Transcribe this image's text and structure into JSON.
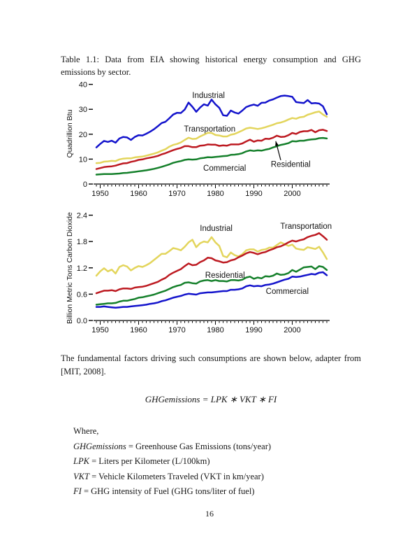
{
  "page": {
    "caption": "Table 1.1: Data from EIA showing historical energy consumption and GHG emissions by sector.",
    "paragraph": "The fundamental factors driving such consumptions are shown below, adapter from [MIT, 2008].",
    "equation": "GHGemissions = LPK ∗ VKT ∗ FI",
    "where_label": "Where,",
    "definitions": [
      {
        "term": "GHGemissions",
        "text": "= Greenhouse Gas Emissions (tons/year)"
      },
      {
        "term": "LPK",
        "text": "= Liters per Kilometer (L/100km)"
      },
      {
        "term": "VKT",
        "text": "= Vehicle Kilometers Traveled (VKT in km/year)"
      },
      {
        "term": "FI",
        "text": "= GHG intensity of Fuel (GHG tons/liter of fuel)"
      }
    ],
    "page_number": "16"
  },
  "chart_data": [
    {
      "type": "line",
      "title": "",
      "xlabel": "",
      "ylabel": "Quadrillion Btu",
      "ylim": [
        0,
        40
      ],
      "yticks": [
        0,
        10,
        20,
        30,
        40
      ],
      "ytick_labels": [
        "0",
        "10",
        "20",
        "30",
        "40"
      ],
      "x_start": 1949,
      "x_end": 2009,
      "xticks_labeled": [
        1950,
        1960,
        1970,
        1980,
        1990,
        2000
      ],
      "grid": false,
      "legend": "inline-labels",
      "series": [
        {
          "name": "Industrial",
          "color": "#1414cc",
          "values": [
            14.7,
            16.1,
            17.3,
            16.9,
            17.4,
            16.6,
            18.3,
            18.9,
            18.7,
            17.7,
            18.9,
            19.6,
            19.5,
            20.2,
            21.0,
            22.0,
            23.2,
            24.5,
            25.0,
            26.4,
            27.9,
            28.6,
            28.5,
            29.9,
            32.7,
            31.0,
            29.0,
            30.7,
            32.0,
            31.5,
            33.9,
            32.0,
            30.6,
            27.6,
            27.4,
            29.5,
            28.7,
            28.3,
            29.5,
            30.9,
            31.5,
            31.9,
            31.4,
            32.6,
            32.7,
            33.5,
            34.0,
            34.7,
            35.3,
            35.5,
            35.3,
            35.0,
            32.9,
            32.7,
            32.5,
            33.7,
            32.4,
            32.5,
            32.3,
            31.2,
            28.0
          ]
        },
        {
          "name": "Transportation",
          "color": "#e3d55c",
          "values": [
            8.4,
            8.5,
            9.0,
            9.1,
            9.3,
            9.2,
            9.9,
            10.2,
            10.3,
            10.3,
            10.7,
            10.9,
            11.0,
            11.4,
            11.8,
            12.2,
            12.7,
            13.4,
            14.0,
            15.0,
            15.7,
            16.1,
            16.7,
            17.7,
            18.6,
            18.1,
            18.2,
            19.1,
            19.8,
            20.6,
            20.5,
            19.7,
            19.5,
            19.1,
            19.1,
            19.8,
            20.1,
            20.8,
            21.5,
            22.3,
            22.6,
            22.4,
            22.1,
            22.4,
            22.8,
            23.3,
            23.8,
            24.4,
            24.7,
            25.2,
            25.9,
            26.5,
            26.2,
            26.8,
            27.0,
            27.8,
            28.3,
            28.8,
            29.1,
            27.9,
            27.0
          ]
        },
        {
          "name": "Residential",
          "color": "#bd1a21",
          "values": [
            6.0,
            6.4,
            6.8,
            7.0,
            7.1,
            7.4,
            7.9,
            8.3,
            8.4,
            8.9,
            9.2,
            9.7,
            9.9,
            10.3,
            10.6,
            10.9,
            11.3,
            11.9,
            12.4,
            13.0,
            13.6,
            14.1,
            14.5,
            15.2,
            15.2,
            14.8,
            14.8,
            15.4,
            15.5,
            15.9,
            15.8,
            15.8,
            15.3,
            15.5,
            15.4,
            15.9,
            15.9,
            15.9,
            16.3,
            17.1,
            17.8,
            17.0,
            17.5,
            17.4,
            18.2,
            18.1,
            18.6,
            19.4,
            18.9,
            19.0,
            19.6,
            20.5,
            20.1,
            20.9,
            21.2,
            21.2,
            21.7,
            20.8,
            21.6,
            21.8,
            21.3
          ]
        },
        {
          "name": "Commercial",
          "color": "#15802b",
          "values": [
            3.8,
            3.9,
            4.0,
            4.0,
            4.0,
            4.1,
            4.2,
            4.4,
            4.5,
            4.7,
            4.9,
            5.1,
            5.3,
            5.5,
            5.8,
            6.1,
            6.5,
            6.9,
            7.4,
            7.9,
            8.5,
            8.9,
            9.2,
            9.7,
            9.9,
            9.8,
            9.9,
            10.3,
            10.5,
            10.8,
            10.7,
            10.9,
            11.0,
            11.2,
            11.3,
            11.7,
            11.8,
            12.0,
            12.4,
            13.1,
            13.5,
            13.3,
            13.5,
            13.4,
            13.8,
            14.1,
            14.7,
            15.2,
            15.7,
            16.0,
            16.4,
            17.2,
            17.1,
            17.4,
            17.4,
            17.7,
            17.9,
            18.0,
            18.4,
            18.5,
            18.3
          ]
        }
      ],
      "labels": [
        {
          "text": "Industrial",
          "x": 1978.2,
          "y": 34.5
        },
        {
          "text": "Transportation",
          "x": 1978.5,
          "y": 21.0
        },
        {
          "text": "Commercial",
          "x": 1982.4,
          "y": 5.4
        },
        {
          "text": "Residential",
          "x": 1999.6,
          "y": 6.9,
          "arrow": {
            "from": {
              "x": 1997.0,
              "y": 9.6
            },
            "to": {
              "x": 1995.7,
              "y": 17.2
            }
          }
        }
      ]
    },
    {
      "type": "line",
      "title": "",
      "xlabel": "",
      "ylabel": "Billion Metric Tons Carbon Dioxide",
      "ylim": [
        0,
        2.4
      ],
      "yticks": [
        0,
        0.6,
        1.2,
        1.8,
        2.4
      ],
      "ytick_labels": [
        "0.0",
        "0.6",
        "1.2",
        "1.8",
        "2.4"
      ],
      "x_start": 1949,
      "x_end": 2009,
      "xticks_labeled": [
        1950,
        1960,
        1970,
        1980,
        1990,
        2000
      ],
      "grid": false,
      "legend": "inline-labels",
      "series": [
        {
          "name": "Industrial",
          "color": "#e3d55c",
          "values": [
            1.02,
            1.12,
            1.19,
            1.12,
            1.16,
            1.07,
            1.22,
            1.26,
            1.23,
            1.14,
            1.2,
            1.24,
            1.22,
            1.26,
            1.31,
            1.38,
            1.45,
            1.52,
            1.52,
            1.58,
            1.65,
            1.63,
            1.6,
            1.68,
            1.78,
            1.84,
            1.67,
            1.76,
            1.8,
            1.78,
            1.9,
            1.78,
            1.7,
            1.47,
            1.44,
            1.55,
            1.49,
            1.46,
            1.51,
            1.6,
            1.62,
            1.62,
            1.57,
            1.61,
            1.62,
            1.66,
            1.66,
            1.72,
            1.78,
            1.74,
            1.7,
            1.73,
            1.64,
            1.62,
            1.61,
            1.67,
            1.65,
            1.63,
            1.68,
            1.55,
            1.4
          ]
        },
        {
          "name": "Commercial",
          "color": "#1414cc",
          "values": [
            0.31,
            0.31,
            0.32,
            0.31,
            0.3,
            0.29,
            0.3,
            0.31,
            0.31,
            0.32,
            0.33,
            0.34,
            0.35,
            0.36,
            0.38,
            0.39,
            0.41,
            0.44,
            0.46,
            0.49,
            0.52,
            0.54,
            0.56,
            0.59,
            0.61,
            0.6,
            0.59,
            0.62,
            0.63,
            0.64,
            0.64,
            0.65,
            0.66,
            0.67,
            0.67,
            0.7,
            0.7,
            0.71,
            0.73,
            0.78,
            0.8,
            0.78,
            0.79,
            0.78,
            0.81,
            0.82,
            0.84,
            0.87,
            0.9,
            0.93,
            0.95,
            1.0,
            0.99,
            1.0,
            1.02,
            1.04,
            1.06,
            1.05,
            1.09,
            1.1,
            1.03
          ]
        },
        {
          "name": "Residential",
          "color": "#15802b",
          "values": [
            0.36,
            0.37,
            0.38,
            0.39,
            0.39,
            0.4,
            0.43,
            0.45,
            0.45,
            0.47,
            0.49,
            0.52,
            0.53,
            0.55,
            0.57,
            0.59,
            0.62,
            0.65,
            0.68,
            0.72,
            0.76,
            0.79,
            0.81,
            0.86,
            0.87,
            0.85,
            0.84,
            0.89,
            0.91,
            0.92,
            0.9,
            0.92,
            0.9,
            0.9,
            0.89,
            0.92,
            0.92,
            0.91,
            0.93,
            0.98,
            1.0,
            0.95,
            0.98,
            0.96,
            1.01,
            1.0,
            1.02,
            1.07,
            1.04,
            1.05,
            1.08,
            1.15,
            1.11,
            1.16,
            1.21,
            1.22,
            1.23,
            1.17,
            1.24,
            1.22,
            1.15
          ]
        },
        {
          "name": "Transportation",
          "color": "#bd1a21",
          "values": [
            0.62,
            0.65,
            0.68,
            0.68,
            0.69,
            0.67,
            0.71,
            0.73,
            0.73,
            0.72,
            0.75,
            0.76,
            0.77,
            0.79,
            0.82,
            0.85,
            0.88,
            0.93,
            0.97,
            1.04,
            1.09,
            1.13,
            1.17,
            1.24,
            1.3,
            1.26,
            1.27,
            1.33,
            1.37,
            1.43,
            1.42,
            1.37,
            1.35,
            1.32,
            1.33,
            1.37,
            1.39,
            1.44,
            1.48,
            1.53,
            1.56,
            1.54,
            1.51,
            1.54,
            1.56,
            1.6,
            1.63,
            1.67,
            1.69,
            1.73,
            1.78,
            1.82,
            1.8,
            1.83,
            1.85,
            1.9,
            1.93,
            1.95,
            1.99,
            1.92,
            1.84
          ]
        }
      ],
      "labels": [
        {
          "text": "Industrial",
          "x": 1980.2,
          "y": 2.04
        },
        {
          "text": "Transportation",
          "x": 2003.6,
          "y": 2.09
        },
        {
          "text": "Residential",
          "x": 1982.5,
          "y": 0.97
        },
        {
          "text": "Commercial",
          "x": 1998.7,
          "y": 0.61
        }
      ]
    }
  ]
}
